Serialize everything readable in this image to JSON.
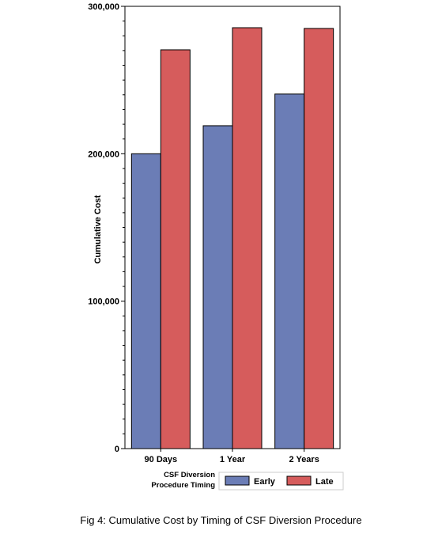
{
  "chart_data": {
    "type": "bar",
    "categories": [
      "90 Days",
      "1 Year",
      "2 Years"
    ],
    "series": [
      {
        "name": "Early",
        "values": [
          200000,
          219000,
          240500
        ],
        "color": "#6b7db6"
      },
      {
        "name": "Late",
        "values": [
          270500,
          285500,
          285000
        ],
        "color": "#d65c5c"
      }
    ],
    "ylabel": "Cumulative Cost",
    "xlabel": "",
    "ylim": [
      0,
      300000
    ],
    "yticks": [
      0,
      100000,
      200000,
      300000
    ],
    "ytick_labels": [
      "0",
      "100,000",
      "200,000",
      "300,000"
    ],
    "legend": {
      "title_line1": "CSF Diversion",
      "title_line2": "Procedure Timing",
      "placement": "bottom"
    },
    "grid": false
  },
  "caption": "Fig 4: Cumulative Cost by Timing of CSF Diversion Procedure"
}
